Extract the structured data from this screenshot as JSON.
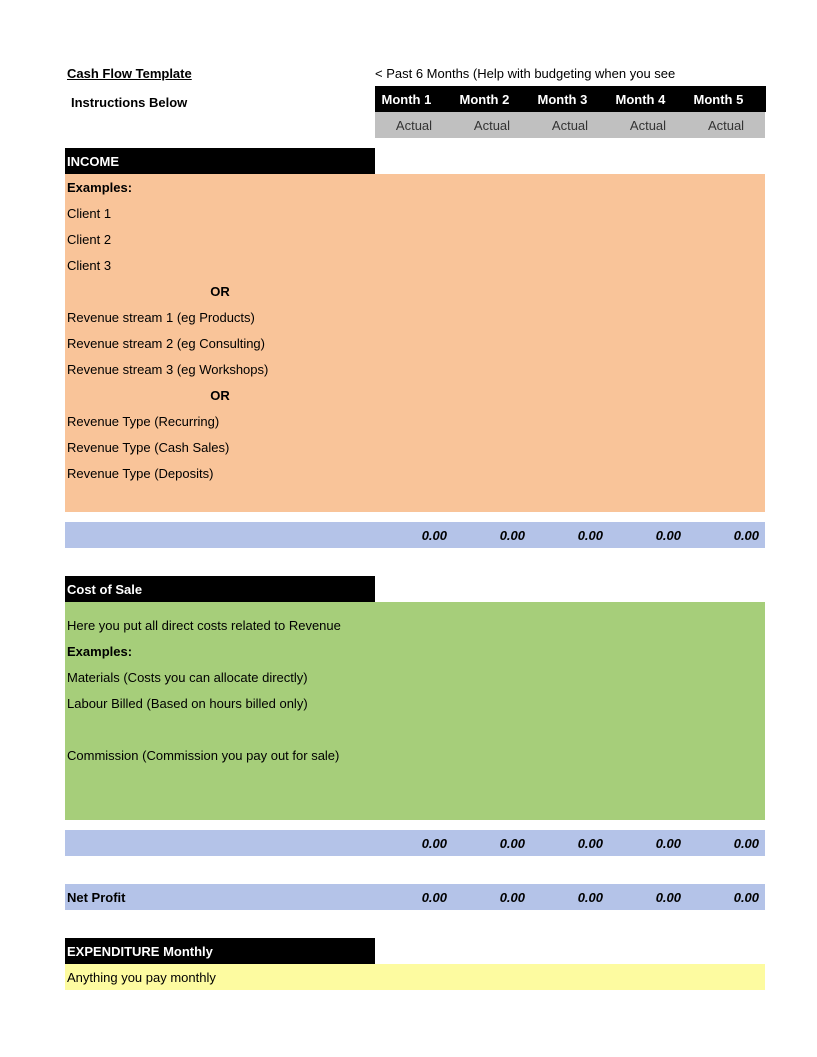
{
  "title": "Cash Flow Template",
  "header_note": "< Past 6 Months (Help with budgeting when you see",
  "instructions": "Instructions Below",
  "months": [
    "Month 1",
    "Month 2",
    "Month 3",
    "Month 4",
    "Month 5"
  ],
  "actual_label": "Actual",
  "income": {
    "header": "INCOME",
    "examples_label": "Examples:",
    "rows1": [
      "Client 1",
      "Client 2",
      "Client 3"
    ],
    "or_label": "OR",
    "rows2": [
      "Revenue stream 1 (eg Products)",
      "Revenue stream 2 (eg Consulting)",
      "Revenue stream 3 (eg Workshops)"
    ],
    "rows3": [
      "Revenue Type (Recurring)",
      "Revenue Type (Cash Sales)",
      "Revenue Type (Deposits)"
    ],
    "totals": [
      "0.00",
      "0.00",
      "0.00",
      "0.00",
      "0.00"
    ]
  },
  "cost": {
    "header": "Cost of Sale",
    "desc": "Here you put all direct costs related to Revenue",
    "examples_label": "Examples:",
    "rows": [
      "Materials (Costs you can allocate directly)",
      "Labour Billed (Based on hours billed only)",
      "",
      "Commission (Commission you pay out for sale)"
    ],
    "totals": [
      "0.00",
      "0.00",
      "0.00",
      "0.00",
      "0.00"
    ]
  },
  "net": {
    "label": "Net Profit",
    "values": [
      "0.00",
      "0.00",
      "0.00",
      "0.00",
      "0.00"
    ]
  },
  "exp": {
    "header": "EXPENDITURE Monthly",
    "desc": "Anything you pay monthly"
  },
  "colors": {
    "black": "#000000",
    "white": "#ffffff",
    "grey": "#c0c0c0",
    "income_bg": "#f9c499",
    "cost_bg": "#a6ce7a",
    "exp_bg": "#fdfba0",
    "paleblue": "#b4c3e8"
  }
}
